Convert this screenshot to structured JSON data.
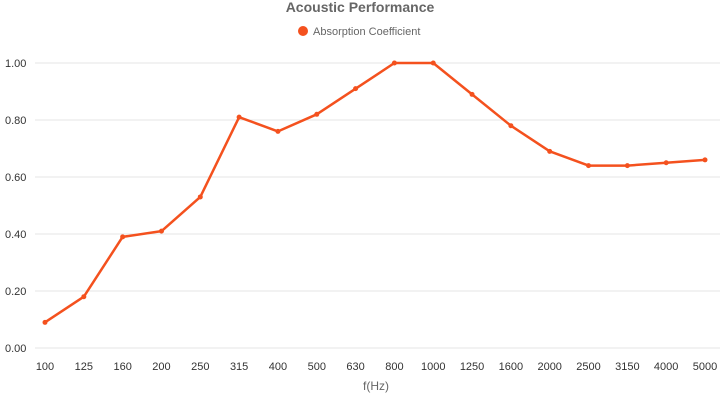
{
  "chart_data": {
    "type": "line",
    "title": "Acoustic Performance",
    "xlabel": "f(Hz)",
    "ylabel": "",
    "categories": [
      "100",
      "125",
      "160",
      "200",
      "250",
      "315",
      "400",
      "500",
      "630",
      "800",
      "1000",
      "1250",
      "1600",
      "2000",
      "2500",
      "3150",
      "4000",
      "5000"
    ],
    "series": [
      {
        "name": "Absorption Coefficient",
        "color": "#f4511e",
        "values": [
          0.09,
          0.18,
          0.39,
          0.41,
          0.53,
          0.81,
          0.76,
          0.82,
          0.91,
          1.0,
          1.0,
          0.89,
          0.78,
          0.69,
          0.64,
          0.64,
          0.65,
          0.66
        ]
      }
    ],
    "ylim": [
      0,
      1.0
    ],
    "yticks": [
      "0.00",
      "0.20",
      "0.40",
      "0.60",
      "0.80",
      "1.00"
    ],
    "grid": true,
    "legend": "top-center"
  }
}
